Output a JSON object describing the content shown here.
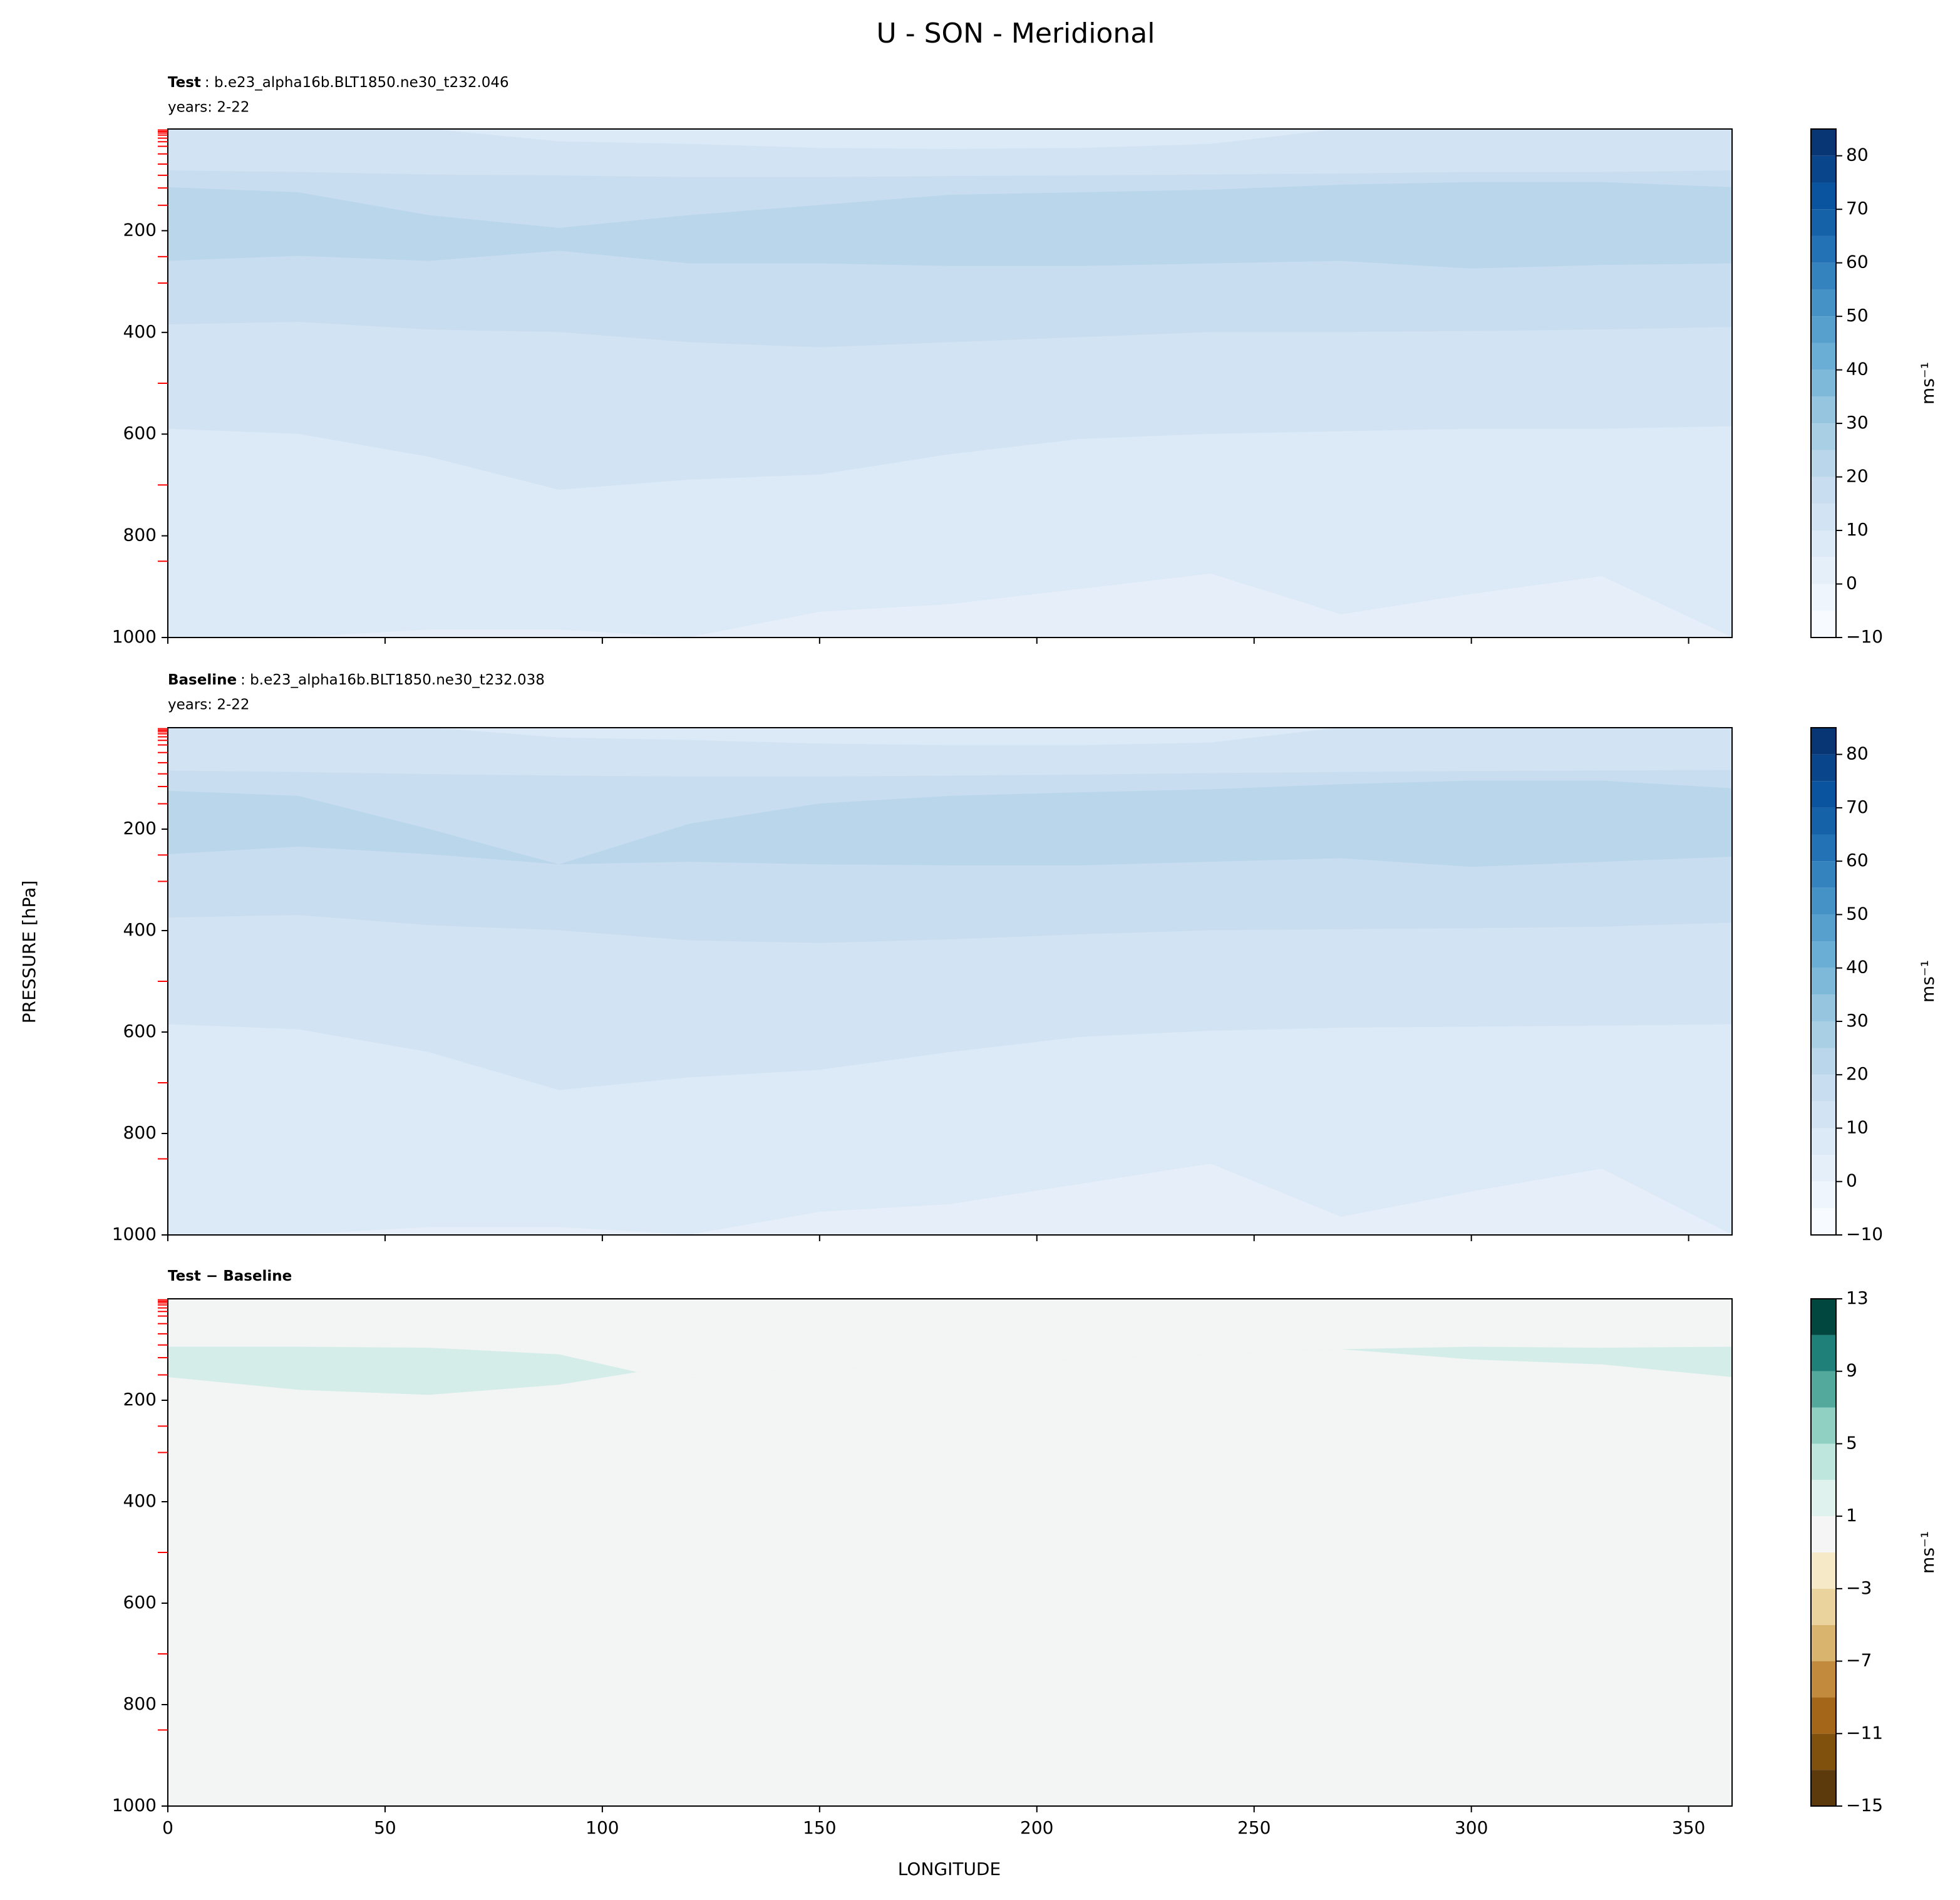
{
  "title": "U - SON - Meridional",
  "ylabel": "PRESSURE [hPa]",
  "xlabel": "LONGITUDE",
  "chart_data": [
    {
      "type": "contour",
      "title_bold": "Test",
      "title_rest": ": b.e23_alpha16b.BLT1850.ne30_t232.046",
      "subtitle": "years: 2-22",
      "x": [
        0,
        30,
        60,
        90,
        120,
        150,
        180,
        210,
        240,
        270,
        300,
        330,
        360
      ],
      "background_color": "#dce9f6",
      "series": [
        {
          "color": "#d2e3f3",
          "values": [
            0,
            0,
            0,
            25,
            30,
            38,
            40,
            38,
            30,
            0,
            0,
            0,
            0
          ]
        },
        {
          "color": "#c9ddf0",
          "values": [
            82,
            85,
            90,
            92,
            95,
            95,
            93,
            92,
            90,
            88,
            85,
            85,
            82
          ]
        },
        {
          "color": "#bad6eb",
          "values": [
            115,
            125,
            170,
            195,
            170,
            150,
            130,
            125,
            120,
            110,
            105,
            105,
            115
          ]
        },
        {
          "color": "#c9ddf0",
          "values": [
            260,
            250,
            260,
            240,
            265,
            265,
            270,
            270,
            265,
            260,
            275,
            268,
            265
          ]
        },
        {
          "color": "#d2e3f3",
          "values": [
            385,
            380,
            395,
            400,
            420,
            430,
            420,
            410,
            400,
            400,
            398,
            395,
            390
          ]
        },
        {
          "color": "#dce9f6",
          "values": [
            590,
            600,
            645,
            710,
            690,
            680,
            640,
            610,
            600,
            595,
            590,
            590,
            585
          ]
        },
        {
          "color": "#e6eff9",
          "values": [
            1000,
            1000,
            985,
            985,
            1000,
            950,
            935,
            905,
            875,
            955,
            915,
            880,
            1000
          ]
        }
      ],
      "xlim": [
        0,
        360
      ],
      "xticks": [
        0,
        50,
        100,
        150,
        200,
        250,
        300,
        350
      ],
      "show_xtick_labels": false,
      "ylim": [
        1000,
        0
      ],
      "yticks": [
        200,
        400,
        600,
        800,
        1000
      ],
      "model_levels": [
        2,
        5,
        8,
        12,
        18,
        25,
        34,
        49,
        69,
        91,
        116,
        150,
        251,
        303,
        500,
        700,
        850
      ],
      "model_level_color": "#ff0000",
      "colorbar": {
        "levels": [
          -10,
          -5,
          0,
          5,
          10,
          15,
          20,
          25,
          30,
          35,
          40,
          45,
          50,
          55,
          60,
          65,
          70,
          75,
          80,
          85
        ],
        "colors": [
          "#f7fbff",
          "#eef5fc",
          "#e5effa",
          "#dce9f6",
          "#d2e3f3",
          "#c9ddf0",
          "#bad6eb",
          "#a9cfe5",
          "#95c5df",
          "#7fb9da",
          "#6aaed6",
          "#57a0ce",
          "#4592c6",
          "#3482be",
          "#2372b5",
          "#1562a9",
          "#0a539e",
          "#08458a",
          "#083573"
        ],
        "lim": [
          -10,
          85
        ],
        "ticks": [
          {
            "value": -10,
            "label": "−10"
          },
          0,
          10,
          20,
          30,
          40,
          50,
          60,
          70,
          80
        ],
        "label": "ms⁻¹"
      }
    },
    {
      "type": "contour",
      "title_bold": "Baseline",
      "title_rest": ": b.e23_alpha16b.BLT1850.ne30_t232.038",
      "subtitle": "years: 2-22",
      "x": [
        0,
        30,
        60,
        90,
        120,
        150,
        180,
        210,
        240,
        270,
        300,
        330,
        360
      ],
      "background_color": "#dce9f6",
      "series": [
        {
          "color": "#d2e3f3",
          "values": [
            0,
            0,
            0,
            20,
            25,
            32,
            35,
            35,
            30,
            0,
            0,
            0,
            0
          ]
        },
        {
          "color": "#c9ddf0",
          "values": [
            85,
            88,
            92,
            95,
            97,
            97,
            95,
            93,
            90,
            88,
            86,
            85,
            84
          ]
        },
        {
          "color": "#bad6eb",
          "values": [
            125,
            135,
            200,
            270,
            190,
            150,
            135,
            128,
            122,
            112,
            105,
            105,
            120
          ]
        },
        {
          "color": "#c9ddf0",
          "values": [
            250,
            235,
            250,
            270,
            265,
            270,
            272,
            272,
            265,
            258,
            275,
            265,
            255
          ]
        },
        {
          "color": "#d2e3f3",
          "values": [
            375,
            370,
            390,
            400,
            420,
            425,
            418,
            408,
            400,
            398,
            396,
            393,
            385
          ]
        },
        {
          "color": "#dce9f6",
          "values": [
            585,
            595,
            640,
            715,
            690,
            675,
            640,
            610,
            598,
            592,
            590,
            588,
            585
          ]
        },
        {
          "color": "#e6eff9",
          "values": [
            1000,
            1000,
            985,
            985,
            1000,
            955,
            940,
            900,
            860,
            965,
            915,
            870,
            1000
          ]
        }
      ],
      "xlim": [
        0,
        360
      ],
      "xticks": [
        0,
        50,
        100,
        150,
        200,
        250,
        300,
        350
      ],
      "show_xtick_labels": false,
      "ylim": [
        1000,
        0
      ],
      "yticks": [
        200,
        400,
        600,
        800,
        1000
      ],
      "model_levels": [
        2,
        5,
        8,
        12,
        18,
        25,
        34,
        49,
        69,
        91,
        116,
        150,
        251,
        303,
        500,
        700,
        850
      ],
      "model_level_color": "#ff0000",
      "colorbar": {
        "levels": [
          -10,
          -5,
          0,
          5,
          10,
          15,
          20,
          25,
          30,
          35,
          40,
          45,
          50,
          55,
          60,
          65,
          70,
          75,
          80,
          85
        ],
        "colors": [
          "#f7fbff",
          "#eef5fc",
          "#e5effa",
          "#dce9f6",
          "#d2e3f3",
          "#c9ddf0",
          "#bad6eb",
          "#a9cfe5",
          "#95c5df",
          "#7fb9da",
          "#6aaed6",
          "#57a0ce",
          "#4592c6",
          "#3482be",
          "#2372b5",
          "#1562a9",
          "#0a539e",
          "#08458a",
          "#083573"
        ],
        "lim": [
          -10,
          85
        ],
        "ticks": [
          {
            "value": -10,
            "label": "−10"
          },
          0,
          10,
          20,
          30,
          40,
          50,
          60,
          70,
          80
        ],
        "label": "ms⁻¹"
      }
    },
    {
      "type": "contour",
      "title_bold": "Test − Baseline",
      "x": [
        0,
        30,
        60,
        90,
        108,
        120,
        270,
        300,
        330,
        360
      ],
      "background_color": "#f3f5f4",
      "series": [
        {
          "color": "#d4ede8",
          "values": [
            95,
            95,
            97,
            110,
            145,
            150,
            100,
            95,
            97,
            95
          ]
        },
        {
          "color": "#f3f5f4",
          "values": [
            155,
            180,
            190,
            170,
            145,
            150,
            100,
            120,
            130,
            155
          ]
        }
      ],
      "xlim": [
        0,
        360
      ],
      "xticks": [
        0,
        50,
        100,
        150,
        200,
        250,
        300,
        350
      ],
      "show_xtick_labels": true,
      "ylim": [
        1000,
        0
      ],
      "yticks": [
        200,
        400,
        600,
        800,
        1000
      ],
      "model_levels": [
        2,
        5,
        8,
        12,
        18,
        25,
        34,
        49,
        69,
        91,
        116,
        150,
        251,
        303,
        500,
        700,
        850
      ],
      "model_level_color": "#ff0000",
      "colorbar": {
        "levels": [
          -15,
          -13,
          -11,
          -9,
          -7,
          -5,
          -3,
          -1,
          1,
          3,
          5,
          7,
          9,
          11,
          13
        ],
        "colors": [
          "#5c3a0b",
          "#80500d",
          "#a46719",
          "#c18a3d",
          "#d8b46e",
          "#ead39c",
          "#f5e9c8",
          "#f5f5f5",
          "#e0f2ee",
          "#bfe6dd",
          "#8fd0c2",
          "#52a99c",
          "#1e8079",
          "#01463f"
        ],
        "lim": [
          -15,
          13
        ],
        "ticks": [
          {
            "value": -15,
            "label": "−15"
          },
          {
            "value": -11,
            "label": "−11"
          },
          {
            "value": -7,
            "label": "−7"
          },
          {
            "value": -3,
            "label": "−3"
          },
          1,
          5,
          9,
          13
        ],
        "label": "ms⁻¹"
      }
    }
  ]
}
